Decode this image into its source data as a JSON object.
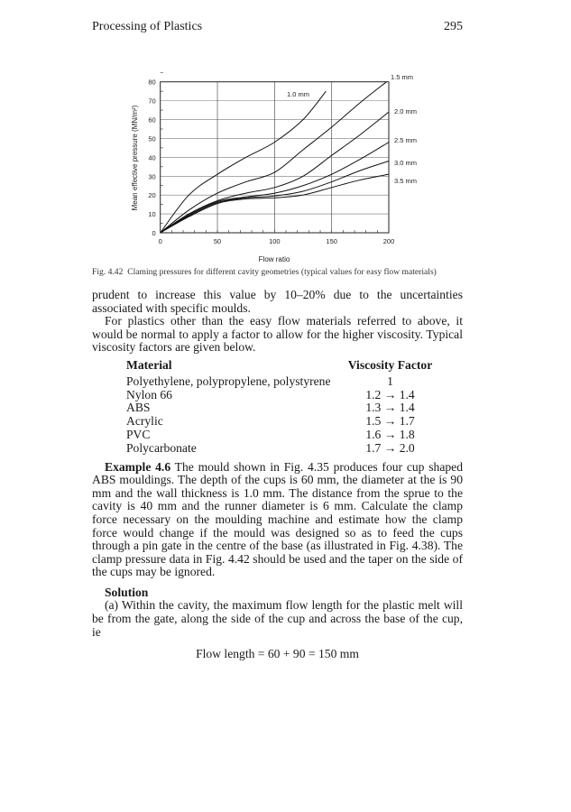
{
  "header": {
    "running_title": "Processing of Plastics",
    "page_number": "295"
  },
  "figure": {
    "caption_label": "Fig. 4.42",
    "caption_text": "Claming pressures for different cavity geometries (typical values for easy flow materials)",
    "chart_data": {
      "type": "line",
      "title": "",
      "xlabel": "Flow ratio",
      "ylabel": "Mean effective pressure (MN/m²)",
      "xlim": [
        0,
        200
      ],
      "ylim": [
        0,
        80
      ],
      "xticks": [
        "0",
        "50",
        "100",
        "150",
        "200"
      ],
      "yticks": [
        "0",
        "10",
        "20",
        "30",
        "40",
        "50",
        "60",
        "70",
        "80"
      ],
      "grid": true,
      "series": [
        {
          "name": "1.0 mm",
          "x": [
            0,
            25,
            50,
            75,
            100,
            125,
            145
          ],
          "y": [
            0,
            20,
            31,
            40,
            48,
            60,
            75
          ]
        },
        {
          "name": "1.5 mm",
          "x": [
            0,
            25,
            50,
            75,
            100,
            125,
            150,
            175,
            198
          ],
          "y": [
            0,
            12,
            21,
            27,
            32,
            44,
            56,
            69,
            80
          ]
        },
        {
          "name": "2.0 mm",
          "x": [
            0,
            25,
            50,
            75,
            100,
            125,
            150,
            175,
            200
          ],
          "y": [
            0,
            10,
            17,
            21,
            24,
            30,
            41,
            52,
            64
          ]
        },
        {
          "name": "2.5 mm",
          "x": [
            0,
            25,
            50,
            75,
            100,
            125,
            150,
            175,
            200
          ],
          "y": [
            0,
            9.5,
            16.5,
            19,
            21,
            25,
            31,
            39,
            48
          ]
        },
        {
          "name": "3.0 mm",
          "x": [
            0,
            25,
            50,
            75,
            100,
            125,
            150,
            175,
            200
          ],
          "y": [
            0,
            9,
            16,
            18.5,
            19.5,
            22,
            27,
            33,
            38
          ]
        },
        {
          "name": "3.5 mm",
          "x": [
            0,
            25,
            50,
            75,
            100,
            125,
            150,
            175,
            200
          ],
          "y": [
            0,
            8.5,
            15.5,
            18,
            18.5,
            20,
            24,
            28,
            31
          ]
        }
      ]
    }
  },
  "body": {
    "para1": "prudent to increase this value by 10–20% due to the uncertainties associated with specific moulds.",
    "para2": "For plastics other than the easy flow materials referred to above, it would be normal to apply a factor to allow for the higher viscosity. Typical viscosity factors are given below.",
    "table": {
      "headers": [
        "Material",
        "Viscosity Factor"
      ],
      "rows": [
        [
          "Polyethylene, polypropylene, polystyrene",
          "1"
        ],
        [
          "Nylon 66",
          "1.2 → 1.4"
        ],
        [
          "ABS",
          "1.3 → 1.4"
        ],
        [
          "Acrylic",
          "1.5 → 1.7"
        ],
        [
          "PVC",
          "1.6 → 1.8"
        ],
        [
          "Polycarbonate",
          "1.7 → 2.0"
        ]
      ]
    },
    "example_label": "Example 4.6",
    "example_text": " The mould shown in Fig. 4.35 produces four cup shaped ABS mouldings. The depth of the cups is 60 mm, the diameter at the is 90 mm and the wall thickness is 1.0 mm. The distance from the sprue to the cavity is 40 mm and the runner diameter is 6 mm. Calculate the clamp force necessary on the moulding machine and estimate how the clamp force would change if the mould was designed so as to feed the cups through a pin gate in the centre of the base (as illustrated in Fig. 4.38). The clamp pressure data in Fig. 4.42 should be used and the taper on the side of the cups may be ignored.",
    "solution_heading": "Solution",
    "solution_text": "(a) Within the cavity, the maximum flow length for the plastic melt will be from the gate, along the side of the cup and across the base of the cup, ie",
    "equation": "Flow length = 60 + 90 = 150 mm"
  }
}
